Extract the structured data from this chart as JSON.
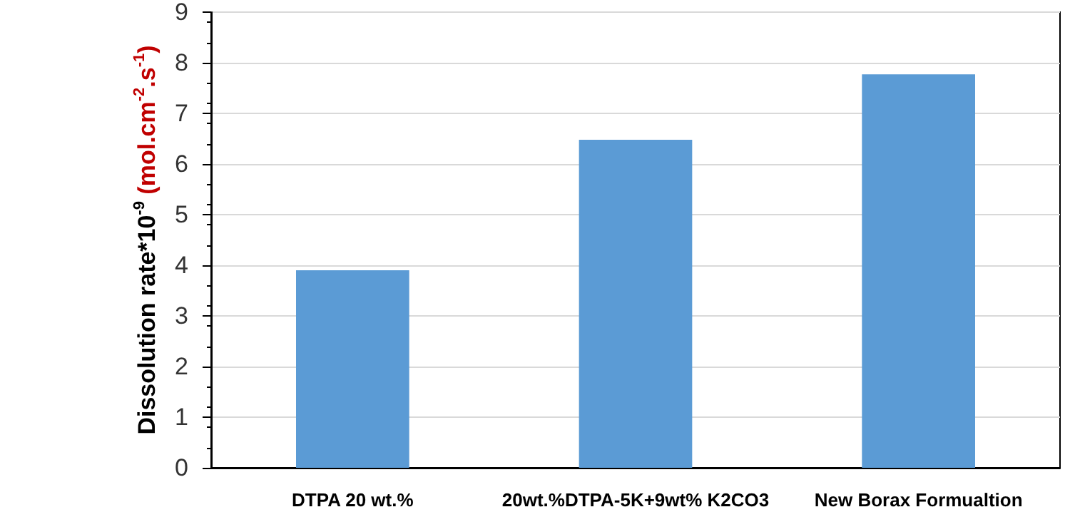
{
  "chart_data": {
    "type": "bar",
    "categories": [
      "DTPA 20 wt.%",
      "20wt.%DTPA-5K+9wt% K2CO3",
      "New Borax Formualtion"
    ],
    "values": [
      3.9,
      6.48,
      7.77
    ],
    "color": "#5b9bd5",
    "ylabel": "Dissolution rate*10$^{-9}$ (mol.cm$^{-2}$.s$^{-1}$)",
    "ylim": [
      0,
      9
    ],
    "yticks": [
      0,
      1,
      2,
      3,
      4,
      5,
      6,
      7,
      8,
      9
    ],
    "grid": "y"
  }
}
